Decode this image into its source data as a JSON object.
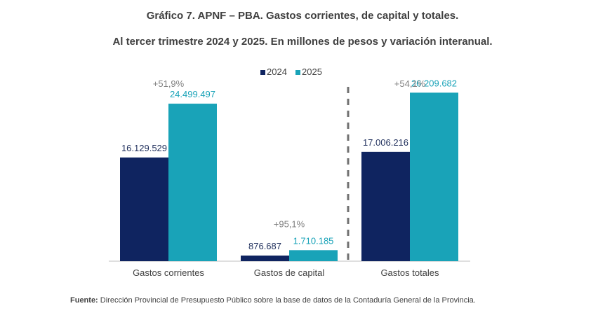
{
  "chart_data": {
    "type": "bar",
    "title": "Gráfico 7. APNF – PBA. Gastos corrientes, de capital y totales.",
    "subtitle": "Al tercer trimestre 2024 y 2025. En millones de pesos y variación interanual.",
    "categories": [
      "Gastos corrientes",
      "Gastos de capital",
      "Gastos totales"
    ],
    "series": [
      {
        "name": "2024",
        "color": "#0f2460",
        "values": [
          16129529,
          876687,
          17006216
        ],
        "labels": [
          "16.129.529",
          "876.687",
          "17.006.216"
        ]
      },
      {
        "name": "2025",
        "color": "#19a3b8",
        "values": [
          24499497,
          1710185,
          26209682
        ],
        "labels": [
          "24.499.497",
          "1.710.185",
          "26.209.682"
        ]
      }
    ],
    "variations": [
      "+51,9%",
      "+95,1%",
      "+54,1%"
    ],
    "ylim": [
      0,
      33000000
    ],
    "legend_position": "top-center",
    "label_colors": {
      "2024": "#1f2f5c",
      "2025": "#19a3b8",
      "variation": "#808080",
      "category": "#404040"
    }
  },
  "source": {
    "label": "Fuente:",
    "text": " Dirección Provincial de Presupuesto Público sobre la base de datos de la Contaduría General de la Provincia."
  }
}
